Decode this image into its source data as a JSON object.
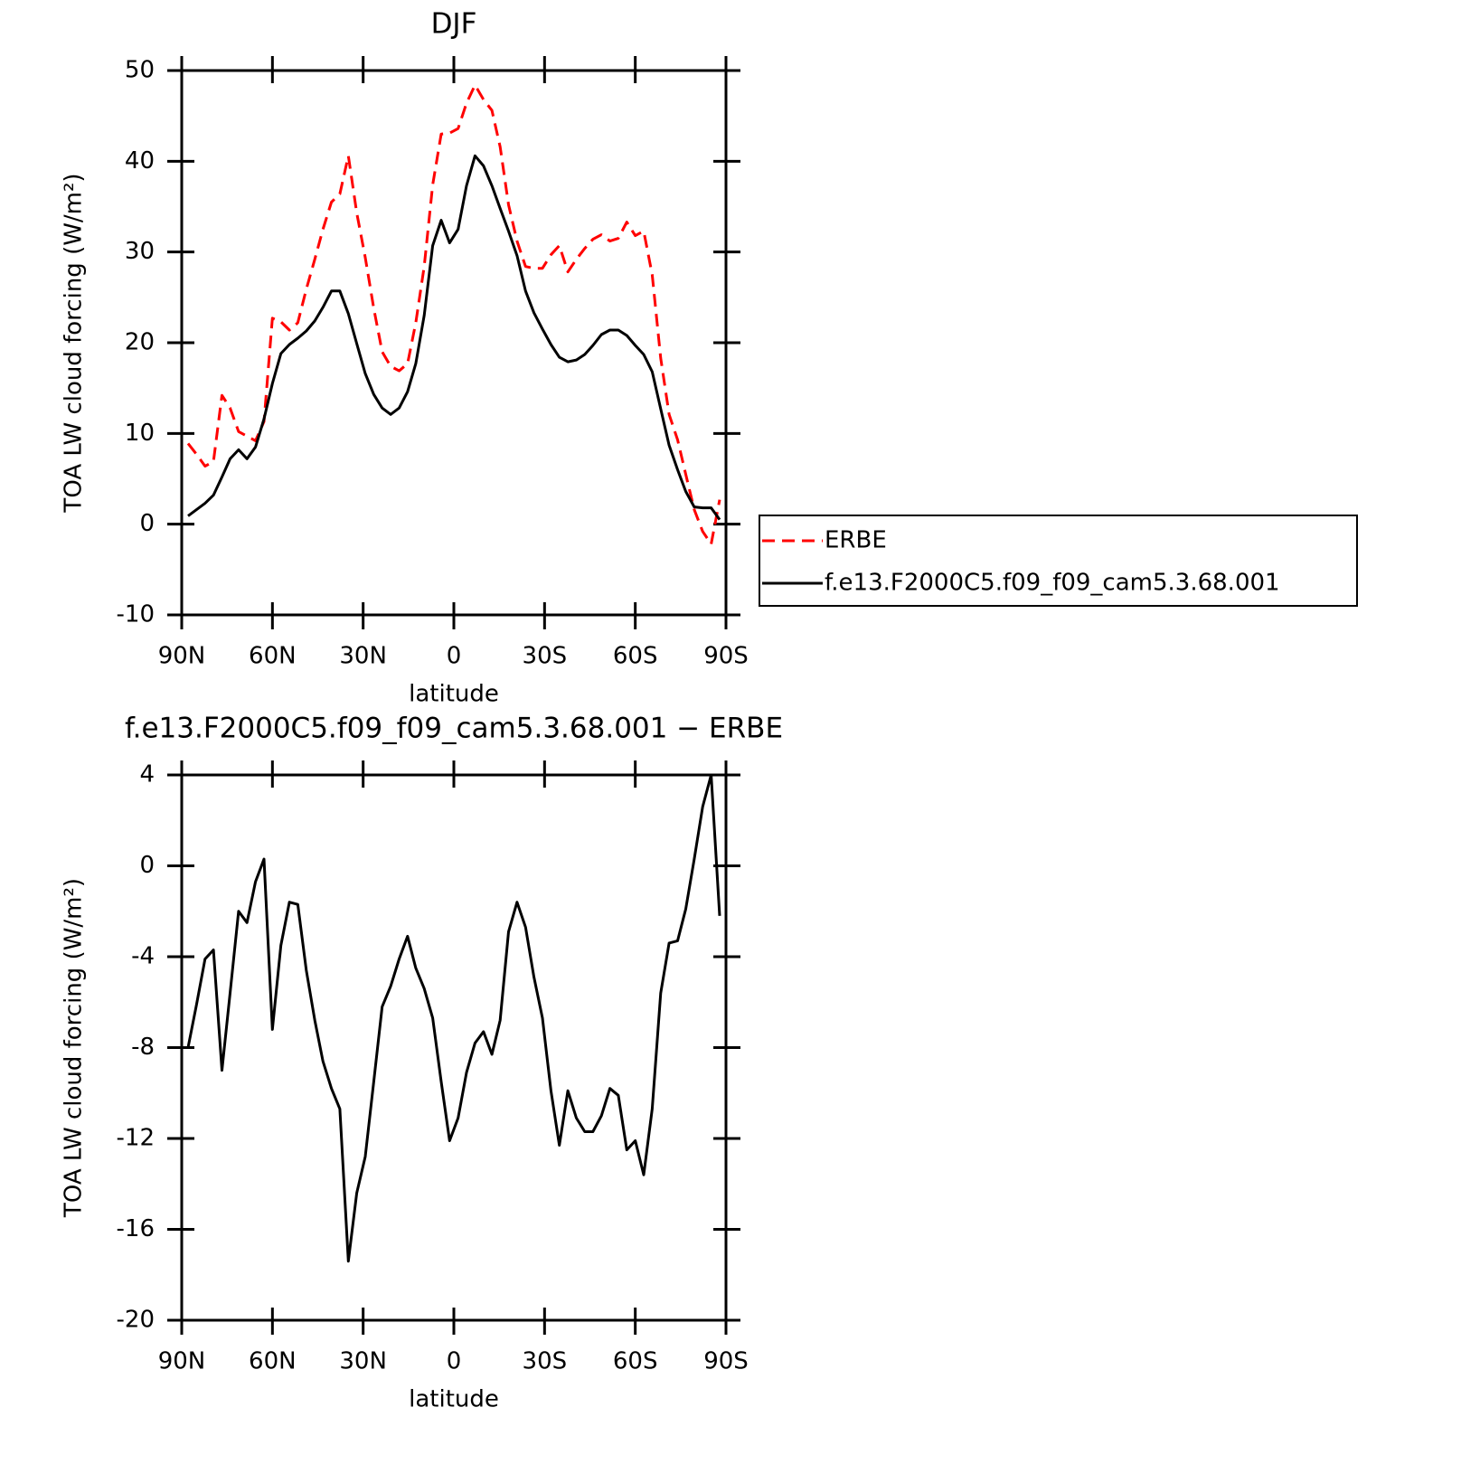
{
  "chart_data": [
    {
      "type": "line",
      "title": "DJF",
      "xlabel": "latitude",
      "ylabel": "TOA LW cloud forcing (W/m²)",
      "x": [
        87.9,
        85.1,
        82.3,
        79.5,
        76.7,
        74.0,
        71.2,
        68.4,
        65.6,
        62.8,
        60.0,
        57.2,
        54.4,
        51.6,
        48.8,
        46.0,
        43.3,
        40.5,
        37.7,
        34.9,
        32.1,
        29.3,
        26.5,
        23.7,
        20.9,
        18.1,
        15.3,
        12.6,
        9.8,
        7.0,
        4.2,
        1.4,
        -1.4,
        -4.2,
        -7.0,
        -9.8,
        -12.6,
        -15.3,
        -18.1,
        -20.9,
        -23.7,
        -26.5,
        -29.3,
        -32.1,
        -34.9,
        -37.7,
        -40.5,
        -43.3,
        -46.0,
        -48.8,
        -51.6,
        -54.4,
        -57.2,
        -60.0,
        -62.8,
        -65.6,
        -68.4,
        -71.2,
        -74.0,
        -76.7,
        -79.5,
        -82.3,
        -85.1,
        -87.9
      ],
      "series": [
        {
          "name": "ERBE",
          "color": "#ff0000",
          "linestyle": "dashed",
          "values": [
            8.9,
            7.7,
            6.4,
            6.9,
            14.2,
            12.8,
            10.2,
            9.7,
            9.2,
            11.3,
            22.7,
            22.3,
            21.4,
            22.2,
            25.9,
            29.2,
            32.5,
            35.5,
            36.4,
            40.6,
            34.3,
            29.4,
            23.8,
            19.0,
            17.4,
            16.9,
            17.7,
            22.2,
            28.4,
            37.4,
            43.0,
            43.1,
            43.6,
            46.4,
            48.4,
            46.8,
            45.6,
            41.6,
            35.2,
            31.2,
            28.4,
            28.2,
            28.2,
            29.7,
            30.7,
            27.8,
            29.2,
            30.4,
            31.4,
            31.9,
            31.2,
            31.5,
            33.3,
            31.8,
            32.3,
            27.5,
            18.3,
            12.1,
            9.3,
            5.5,
            1.6,
            -0.8,
            -2.2,
            2.7
          ]
        },
        {
          "name": "f.e13.F2000C5.f09_f09_cam5.3.68.001",
          "color": "#000000",
          "linestyle": "solid",
          "values": [
            0.9,
            1.6,
            2.3,
            3.2,
            5.2,
            7.2,
            8.2,
            7.2,
            8.5,
            11.6,
            15.5,
            18.8,
            19.8,
            20.5,
            21.3,
            22.4,
            23.9,
            25.7,
            25.7,
            23.2,
            19.9,
            16.6,
            14.3,
            12.8,
            12.1,
            12.8,
            14.6,
            17.7,
            23.0,
            30.7,
            33.5,
            31.0,
            32.5,
            37.3,
            40.6,
            39.5,
            37.3,
            34.8,
            32.3,
            29.6,
            25.7,
            23.3,
            21.5,
            19.8,
            18.4,
            17.9,
            18.1,
            18.7,
            19.7,
            20.9,
            21.4,
            21.4,
            20.8,
            19.7,
            18.7,
            16.8,
            12.7,
            8.7,
            6.0,
            3.6,
            1.9,
            1.8,
            1.8,
            0.5
          ]
        }
      ],
      "xlim": [
        90,
        -90
      ],
      "xticks": [
        {
          "value": 90,
          "label": "90N"
        },
        {
          "value": 60,
          "label": "60N"
        },
        {
          "value": 30,
          "label": "30N"
        },
        0,
        {
          "value": -30,
          "label": "30S"
        },
        {
          "value": -60,
          "label": "60S"
        },
        {
          "value": -90,
          "label": "90S"
        }
      ],
      "ylim": [
        -10,
        50
      ],
      "yticks": [
        -10,
        0,
        10,
        20,
        30,
        40,
        50
      ],
      "legend": "right"
    },
    {
      "type": "line",
      "title": "f.e13.F2000C5.f09_f09_cam5.3.68.001 − ERBE",
      "xlabel": "latitude",
      "ylabel": "TOA LW cloud forcing (W/m²)",
      "x": [
        87.9,
        85.1,
        82.3,
        79.5,
        76.7,
        74.0,
        71.2,
        68.4,
        65.6,
        62.8,
        60.0,
        57.2,
        54.4,
        51.6,
        48.8,
        46.0,
        43.3,
        40.5,
        37.7,
        34.9,
        32.1,
        29.3,
        26.5,
        23.7,
        20.9,
        18.1,
        15.3,
        12.6,
        9.8,
        7.0,
        4.2,
        1.4,
        -1.4,
        -4.2,
        -7.0,
        -9.8,
        -12.6,
        -15.3,
        -18.1,
        -20.9,
        -23.7,
        -26.5,
        -29.3,
        -32.1,
        -34.9,
        -37.7,
        -40.5,
        -43.3,
        -46.0,
        -48.8,
        -51.6,
        -54.4,
        -57.2,
        -60.0,
        -62.8,
        -65.6,
        -68.4,
        -71.2,
        -74.0,
        -76.7,
        -79.5,
        -82.3,
        -85.1,
        -87.9
      ],
      "series": [
        {
          "color": "#000000",
          "linestyle": "solid",
          "values": [
            -8.0,
            -6.1,
            -4.1,
            -3.7,
            -9.0,
            -5.6,
            -2.0,
            -2.5,
            -0.7,
            0.3,
            -7.2,
            -3.5,
            -1.6,
            -1.7,
            -4.6,
            -6.8,
            -8.6,
            -9.8,
            -10.7,
            -17.4,
            -14.4,
            -12.8,
            -9.5,
            -6.2,
            -5.3,
            -4.1,
            -3.1,
            -4.5,
            -5.4,
            -6.7,
            -9.5,
            -12.1,
            -11.1,
            -9.1,
            -7.8,
            -7.3,
            -8.3,
            -6.8,
            -2.9,
            -1.6,
            -2.7,
            -4.9,
            -6.7,
            -9.9,
            -12.3,
            -9.9,
            -11.1,
            -11.7,
            -11.7,
            -11.0,
            -9.8,
            -10.1,
            -12.5,
            -12.1,
            -13.6,
            -10.7,
            -5.6,
            -3.4,
            -3.3,
            -1.9,
            0.3,
            2.6,
            4.0,
            -2.2
          ]
        }
      ],
      "xlim": [
        90,
        -90
      ],
      "xticks": [
        {
          "value": 90,
          "label": "90N"
        },
        {
          "value": 60,
          "label": "60N"
        },
        {
          "value": 30,
          "label": "30N"
        },
        0,
        {
          "value": -30,
          "label": "30S"
        },
        {
          "value": -60,
          "label": "60S"
        },
        {
          "value": -90,
          "label": "90S"
        }
      ],
      "ylim": [
        -20,
        4
      ],
      "yticks": [
        -20,
        -16,
        -12,
        -8,
        -4,
        0,
        4
      ]
    }
  ]
}
